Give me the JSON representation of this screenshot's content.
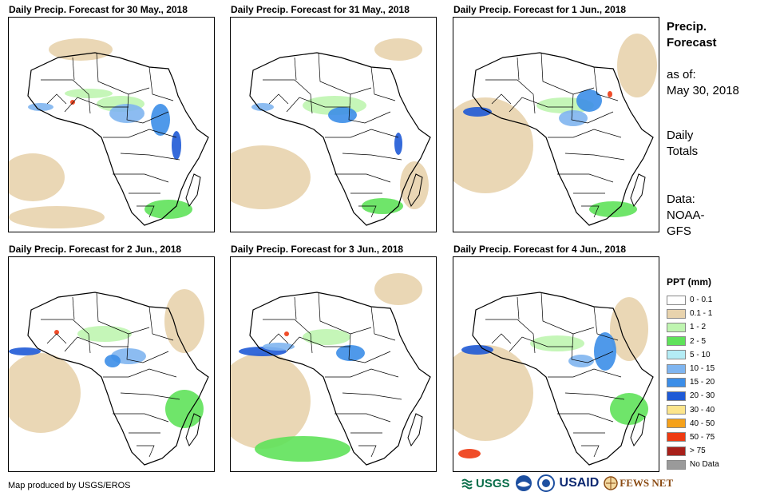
{
  "panels": [
    {
      "title": "Daily Precip. Forecast for 30 May., 2018"
    },
    {
      "title": "Daily Precip. Forecast for 31 May., 2018"
    },
    {
      "title": "Daily Precip. Forecast for 1 Jun., 2018"
    },
    {
      "title": "Daily Precip. Forecast for 2 Jun., 2018"
    },
    {
      "title": "Daily Precip. Forecast for 3 Jun., 2018"
    },
    {
      "title": "Daily Precip. Forecast for 4 Jun., 2018"
    }
  ],
  "sidebar": {
    "title_line1": "Precip.",
    "title_line2": "Forecast",
    "asof_label": "as of:",
    "asof_date": "May 30, 2018",
    "totals_line1": "Daily",
    "totals_line2": "Totals",
    "data_label": "Data:",
    "data_source_line1": "NOAA-",
    "data_source_line2": "GFS"
  },
  "legend": {
    "title": "PPT (mm)",
    "items": [
      {
        "label": "0 - 0.1",
        "color": "#ffffff"
      },
      {
        "label": "0.1 - 1",
        "color": "#e8d3ad"
      },
      {
        "label": "1 - 2",
        "color": "#bff5b0"
      },
      {
        "label": "2 - 5",
        "color": "#5fe25a"
      },
      {
        "label": "5 - 10",
        "color": "#b4ecf5"
      },
      {
        "label": "10 - 15",
        "color": "#7fb5f0"
      },
      {
        "label": "15 - 20",
        "color": "#3c8ee8"
      },
      {
        "label": "20 - 30",
        "color": "#1f5ad6"
      },
      {
        "label": "30 - 40",
        "color": "#fce58c"
      },
      {
        "label": "40 - 50",
        "color": "#f5a11a"
      },
      {
        "label": "50 - 75",
        "color": "#ee3a12"
      },
      {
        "label": "> 75",
        "color": "#a8201a"
      },
      {
        "label": "No Data",
        "color": "#9a9a9a"
      }
    ]
  },
  "footer": {
    "credit": "Map produced by USGS/EROS"
  },
  "logos": {
    "usgs": "USGS",
    "usaid": "USAID",
    "fewsnet": "FEWS NET"
  }
}
